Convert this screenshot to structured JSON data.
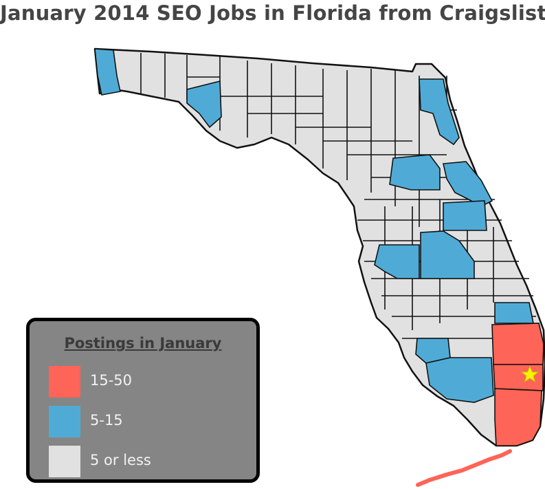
{
  "title": "January 2014 SEO Jobs in Florida from Craigslist",
  "legend": {
    "title": "Postings in January",
    "items": [
      {
        "label": "15-50",
        "color": "#fe6457"
      },
      {
        "label": "5-15",
        "color": "#4fabd6"
      },
      {
        "label": "5 or less",
        "color": "#e1e1e1"
      }
    ]
  },
  "colors": {
    "county_default": "#e1e1e1",
    "county_border": "#111111",
    "high": "#fe6457",
    "mid": "#4fabd6",
    "marker": "#f8f400"
  },
  "marker_icon": "star-icon"
}
